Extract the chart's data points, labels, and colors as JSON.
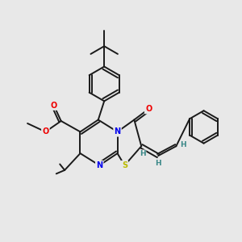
{
  "bg_color": "#e8e8e8",
  "bond_color": "#1a1a1a",
  "bond_width": 1.4,
  "atom_colors": {
    "N": "#0000ee",
    "O": "#ee0000",
    "S": "#bbbb00",
    "H": "#3a8888",
    "C": "#1a1a1a"
  },
  "afs": 7.0
}
